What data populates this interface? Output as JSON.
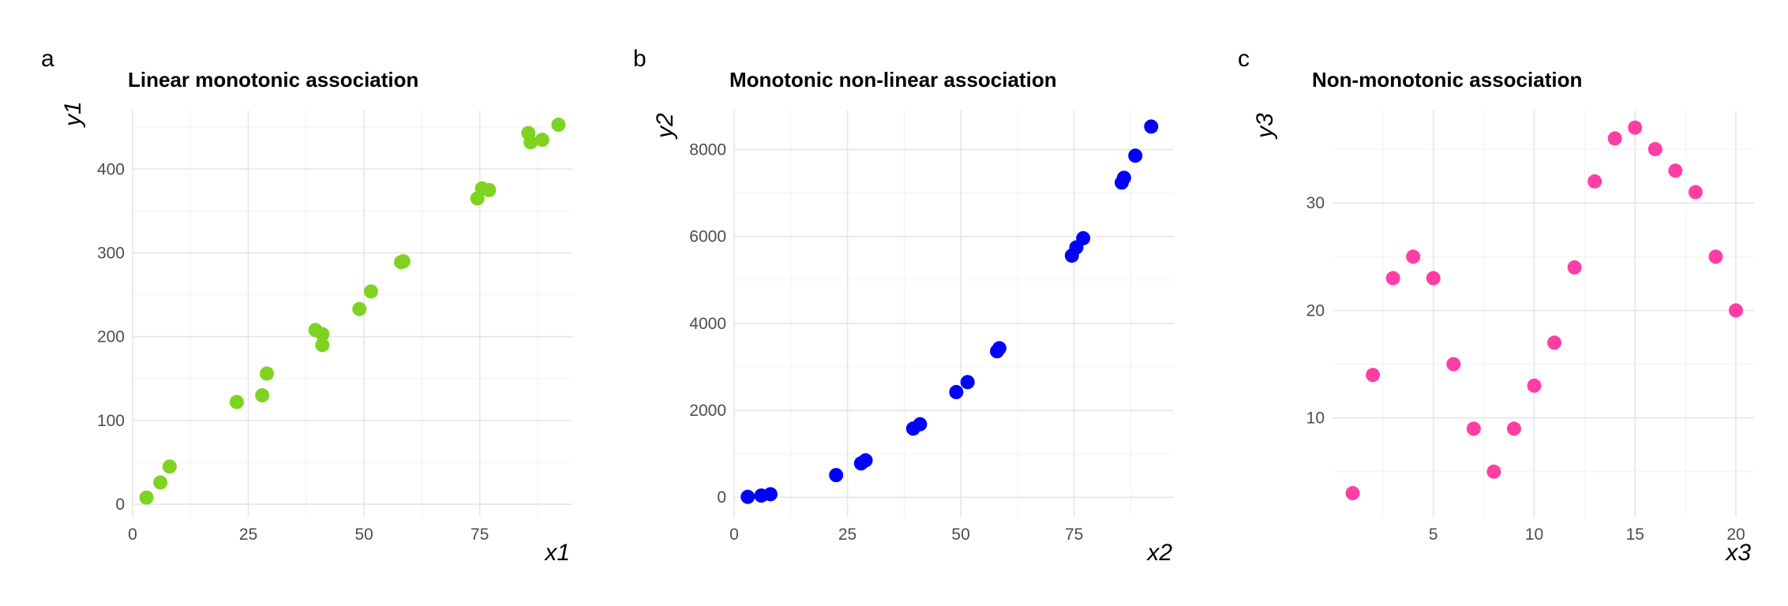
{
  "colors": {
    "panel_a_points": "#7ED321",
    "panel_b_points": "#0000FF",
    "panel_c_points": "#FF3EA5",
    "grid_major": "#E6E6E6",
    "grid_minor": "#F3F3F3",
    "tick_text": "#4D4D4D"
  },
  "chart_data": [
    {
      "panel": "a",
      "type": "scatter",
      "title": "Linear monotonic association",
      "xlabel": "x1",
      "ylabel": "y1",
      "grid": true,
      "legend": "none",
      "color": "#7ED321",
      "xlim": [
        0,
        95
      ],
      "ylim": [
        -15,
        470
      ],
      "xticks": [
        0,
        25,
        50,
        75
      ],
      "yticks": [
        0,
        100,
        200,
        300,
        400
      ],
      "series": [
        {
          "x": [
            3,
            6,
            8,
            22.5,
            28,
            29,
            39.5,
            41,
            41,
            49,
            51.5,
            58,
            58.5,
            74.5,
            75.5,
            77,
            85.5,
            86,
            88.5,
            92
          ],
          "y": [
            8,
            26,
            45,
            122,
            130,
            156,
            208,
            203,
            190,
            233,
            254,
            289,
            290,
            365,
            377,
            375,
            443,
            432,
            435,
            453
          ]
        }
      ]
    },
    {
      "panel": "b",
      "type": "scatter",
      "title": "Monotonic non-linear association",
      "xlabel": "x2",
      "ylabel": "y2",
      "grid": true,
      "legend": "none",
      "color": "#0000FF",
      "xlim": [
        0,
        97
      ],
      "ylim": [
        -450,
        8900
      ],
      "xticks": [
        0,
        25,
        50,
        75
      ],
      "yticks": [
        0,
        2000,
        4000,
        6000,
        8000
      ],
      "series": [
        {
          "x": [
            3,
            6,
            8,
            22.5,
            28,
            29,
            39.5,
            41,
            49,
            51.5,
            58,
            58.5,
            74.5,
            75.5,
            77,
            85.5,
            86,
            88.5,
            92
          ],
          "y": [
            10,
            40,
            70,
            510,
            780,
            850,
            1580,
            1680,
            2420,
            2650,
            3360,
            3430,
            5560,
            5750,
            5960,
            7240,
            7350,
            7860,
            8530
          ]
        }
      ]
    },
    {
      "panel": "c",
      "type": "scatter",
      "title": "Non-monotonic association",
      "xlabel": "x3",
      "ylabel": "y3",
      "grid": true,
      "legend": "none",
      "color": "#FF3EA5",
      "xlim": [
        0,
        20.9
      ],
      "ylim": [
        0.8,
        38.6
      ],
      "xticks": [
        5,
        10,
        15,
        20
      ],
      "yticks": [
        10,
        20,
        30
      ],
      "series": [
        {
          "x": [
            1,
            2,
            3,
            4,
            5,
            6,
            7,
            8,
            9,
            10,
            11,
            12,
            13,
            14,
            15,
            16,
            17,
            18,
            19,
            20
          ],
          "y": [
            3,
            14,
            23,
            25,
            23,
            15,
            9,
            5,
            9,
            13,
            17,
            24,
            32,
            36,
            37,
            35,
            33,
            31,
            25,
            20
          ]
        }
      ]
    }
  ]
}
